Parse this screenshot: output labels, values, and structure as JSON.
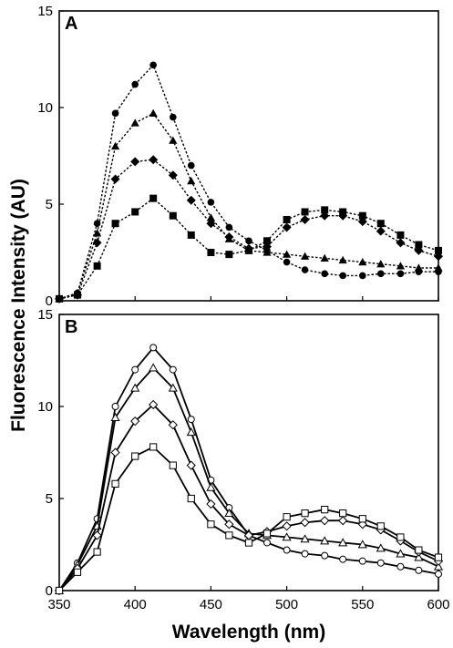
{
  "chart_data": [
    {
      "type": "line",
      "panel_label": "A",
      "line_style": "dotted",
      "marker_fill": "filled",
      "xlim": [
        350,
        600
      ],
      "ylim": [
        0,
        15
      ],
      "x_ticks": [],
      "y_ticks": [
        "0",
        "5",
        "10",
        "15"
      ],
      "grid": false,
      "series": [
        {
          "marker": "circle",
          "x": [
            350,
            362,
            375,
            387,
            400,
            412,
            425,
            437,
            450,
            462,
            475,
            487,
            500,
            512,
            525,
            537,
            550,
            562,
            575,
            587,
            600
          ],
          "y": [
            0.1,
            0.4,
            4.0,
            9.7,
            11.2,
            12.2,
            9.5,
            7.0,
            5.1,
            3.8,
            3.1,
            2.6,
            2.0,
            1.6,
            1.4,
            1.3,
            1.3,
            1.4,
            1.4,
            1.5,
            1.5
          ]
        },
        {
          "marker": "triangle",
          "x": [
            350,
            362,
            375,
            387,
            400,
            412,
            425,
            437,
            450,
            462,
            475,
            487,
            500,
            512,
            525,
            537,
            550,
            562,
            575,
            587,
            600
          ],
          "y": [
            0.1,
            0.4,
            3.5,
            8.0,
            9.2,
            9.7,
            8.3,
            6.2,
            4.3,
            3.2,
            2.6,
            2.5,
            2.4,
            2.3,
            2.2,
            2.1,
            2.0,
            1.9,
            1.8,
            1.7,
            1.7
          ]
        },
        {
          "marker": "diamond",
          "x": [
            350,
            362,
            375,
            387,
            400,
            412,
            425,
            437,
            450,
            462,
            475,
            487,
            500,
            512,
            525,
            537,
            550,
            562,
            575,
            587,
            600
          ],
          "y": [
            0.1,
            0.3,
            3.0,
            6.3,
            7.2,
            7.3,
            6.5,
            5.2,
            4.0,
            3.3,
            2.7,
            2.8,
            3.8,
            4.2,
            4.4,
            4.4,
            4.1,
            3.6,
            3.0,
            2.6,
            2.3
          ]
        },
        {
          "marker": "square",
          "x": [
            350,
            362,
            375,
            387,
            400,
            412,
            425,
            437,
            450,
            462,
            475,
            487,
            500,
            512,
            525,
            537,
            550,
            562,
            575,
            587,
            600
          ],
          "y": [
            0.1,
            0.3,
            1.8,
            4.0,
            4.6,
            5.3,
            4.4,
            3.4,
            2.5,
            2.4,
            2.6,
            3.1,
            4.2,
            4.6,
            4.7,
            4.6,
            4.4,
            4.0,
            3.4,
            2.9,
            2.6
          ]
        }
      ]
    },
    {
      "type": "line",
      "panel_label": "B",
      "line_style": "solid",
      "marker_fill": "open",
      "xlim": [
        350,
        600
      ],
      "ylim": [
        0,
        15
      ],
      "x_ticks": [
        "350",
        "400",
        "450",
        "500",
        "550",
        "600"
      ],
      "y_ticks": [
        "0",
        "5",
        "10",
        "15"
      ],
      "grid": false,
      "series": [
        {
          "marker": "circle",
          "x": [
            350,
            362,
            375,
            387,
            400,
            412,
            425,
            437,
            450,
            462,
            475,
            487,
            500,
            512,
            525,
            537,
            550,
            562,
            575,
            587,
            600
          ],
          "y": [
            0.0,
            1.5,
            3.9,
            10.0,
            12.0,
            13.2,
            12.0,
            9.3,
            6.0,
            4.5,
            3.0,
            2.6,
            2.2,
            2.0,
            1.9,
            1.7,
            1.6,
            1.5,
            1.3,
            1.1,
            0.9
          ]
        },
        {
          "marker": "triangle",
          "x": [
            350,
            362,
            375,
            387,
            400,
            412,
            425,
            437,
            450,
            462,
            475,
            487,
            500,
            512,
            525,
            537,
            550,
            562,
            575,
            587,
            600
          ],
          "y": [
            0.0,
            1.4,
            3.5,
            9.4,
            11.0,
            12.1,
            11.0,
            8.6,
            5.6,
            4.2,
            3.1,
            3.0,
            2.9,
            2.8,
            2.7,
            2.6,
            2.5,
            2.3,
            2.0,
            1.8,
            1.3
          ]
        },
        {
          "marker": "diamond",
          "x": [
            350,
            362,
            375,
            387,
            400,
            412,
            425,
            437,
            450,
            462,
            475,
            487,
            500,
            512,
            525,
            537,
            550,
            562,
            575,
            587,
            600
          ],
          "y": [
            0.0,
            1.2,
            3.0,
            7.5,
            9.2,
            10.1,
            9.0,
            6.8,
            4.7,
            3.6,
            3.0,
            3.2,
            3.5,
            3.7,
            3.8,
            3.8,
            3.6,
            3.3,
            2.7,
            2.1,
            1.6
          ]
        },
        {
          "marker": "square",
          "x": [
            350,
            362,
            375,
            387,
            400,
            412,
            425,
            437,
            450,
            462,
            475,
            487,
            500,
            512,
            525,
            537,
            550,
            562,
            575,
            587,
            600
          ],
          "y": [
            0.0,
            1.0,
            2.1,
            5.8,
            7.3,
            7.8,
            6.8,
            5.0,
            3.6,
            3.0,
            2.6,
            3.1,
            4.0,
            4.2,
            4.4,
            4.2,
            3.9,
            3.5,
            2.9,
            2.2,
            1.8
          ]
        }
      ]
    }
  ],
  "shared_ylabel": "Fluorescence Intensity (AU)",
  "shared_xlabel": "Wavelength (nm)"
}
